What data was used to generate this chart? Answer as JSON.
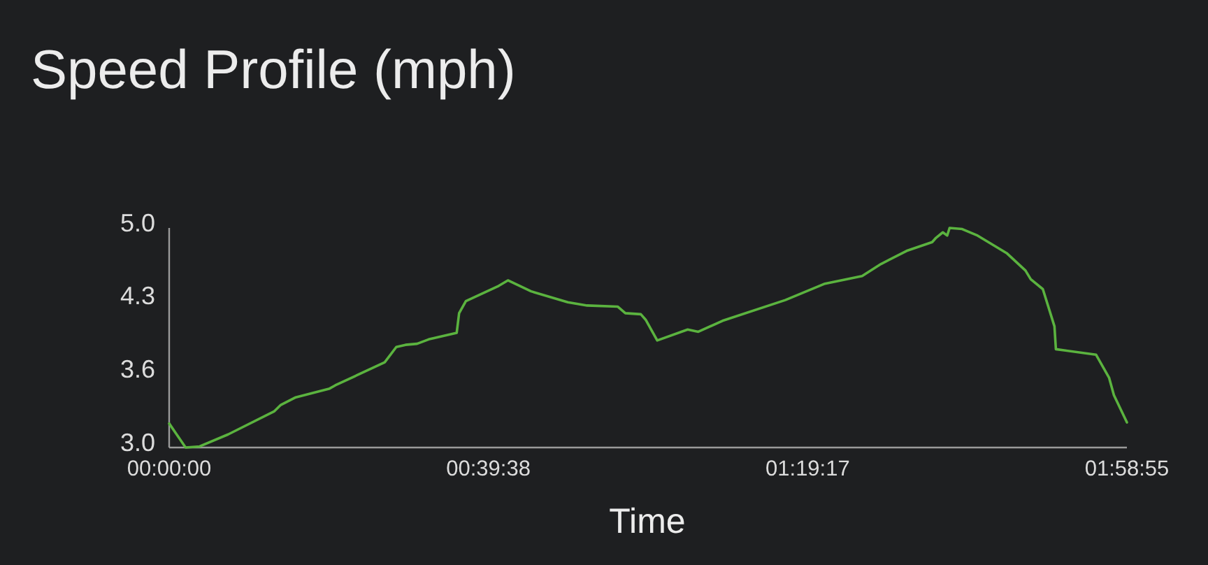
{
  "chart_data": {
    "type": "line",
    "title": "Speed Profile (mph)",
    "xlabel": "Time",
    "x": [
      0,
      0.034,
      0.063,
      0.122,
      0.217,
      0.231,
      0.262,
      0.332,
      0.344,
      0.446,
      0.47,
      0.489,
      0.513,
      0.537,
      0.595,
      0.6,
      0.614,
      0.682,
      0.701,
      0.73,
      0.749,
      0.825,
      0.865,
      0.928,
      0.944,
      0.976,
      0.986,
      1.01,
      1.073,
      1.095,
      1.145,
      1.275,
      1.357,
      1.434,
      1.473,
      1.526,
      1.579,
      1.587,
      1.601,
      1.61,
      1.615,
      1.641,
      1.673,
      1.733,
      1.772,
      1.783,
      1.808,
      1.832,
      1.835,
      1.918,
      1.945,
      1.955,
      1.98194
    ],
    "series": [
      {
        "color": "#5bb33f",
        "values": [
          3.19,
          2.97,
          2.98,
          3.09,
          3.3,
          3.36,
          3.43,
          3.51,
          3.54,
          3.75,
          3.89,
          3.91,
          3.92,
          3.96,
          4.02,
          4.2,
          4.31,
          4.45,
          4.5,
          4.44,
          4.4,
          4.3,
          4.27,
          4.26,
          4.2,
          4.19,
          4.14,
          3.95,
          4.05,
          4.03,
          4.13,
          4.32,
          4.47,
          4.54,
          4.65,
          4.77,
          4.85,
          4.89,
          4.94,
          4.91,
          4.98,
          4.97,
          4.91,
          4.75,
          4.59,
          4.51,
          4.42,
          4.08,
          3.87,
          3.82,
          3.61,
          3.45,
          3.2
        ]
      }
    ],
    "xlim": [
      0,
      1.98194
    ],
    "xticks": [
      {
        "value": 0,
        "label": "00:00:00"
      },
      {
        "value": 0.66056,
        "label": "00:39:38"
      },
      {
        "value": 1.32139,
        "label": "01:19:17"
      },
      {
        "value": 1.98194,
        "label": "01:58:55"
      }
    ],
    "ylim": [
      2.97,
      4.98
    ],
    "yticks": [
      {
        "value": 2.97,
        "label": "3.0"
      },
      {
        "value": 3.64,
        "label": "3.6"
      },
      {
        "value": 4.31,
        "label": "4.3"
      },
      {
        "value": 4.98,
        "label": "5.0"
      }
    ]
  }
}
